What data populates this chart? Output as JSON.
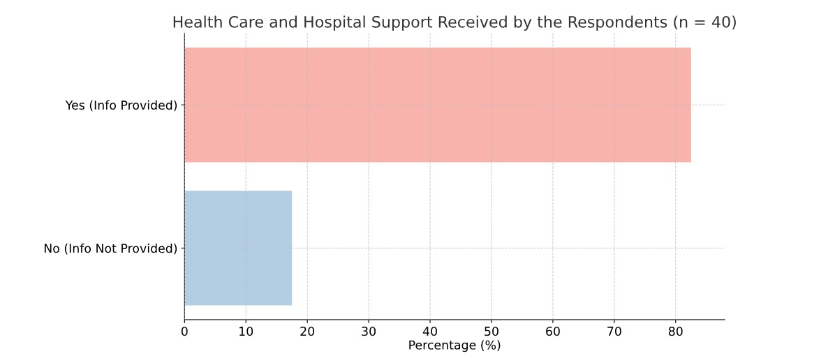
{
  "chart_data": {
    "type": "bar",
    "orientation": "horizontal",
    "title": "Health Care and Hospital Support Received by the Respondents (n = 40)",
    "xlabel": "Percentage (%)",
    "categories": [
      "Yes (Info Provided)",
      "No (Info Not Provided)"
    ],
    "values": [
      82.5,
      17.5
    ],
    "colors": [
      "#f9b3ad",
      "#b3cde3"
    ],
    "xlim": [
      0,
      88
    ],
    "xticks": [
      0,
      10,
      20,
      30,
      40,
      50,
      60,
      70,
      80
    ],
    "grid": true
  }
}
